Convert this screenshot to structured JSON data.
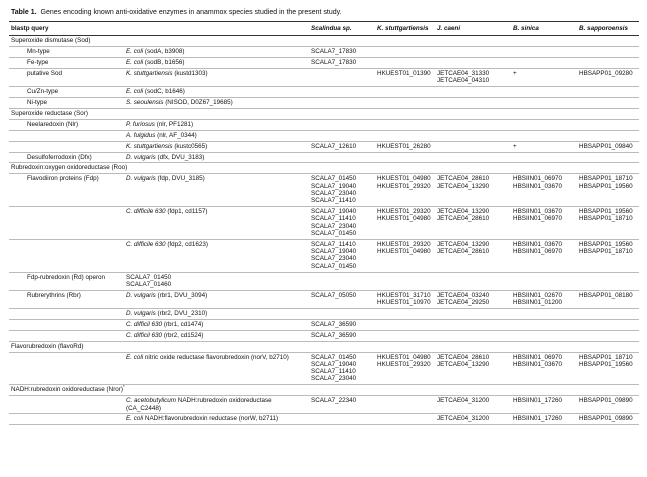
{
  "caption": {
    "label": "Table 1.",
    "text": "Genes encoding known anti-oxidative enzymes in anammox species studied in the present study."
  },
  "table": {
    "header": [
      "blastp query",
      "Scalindua sp.",
      "K. stuttgartiensis",
      "J. caeni",
      "B. sinica",
      "B. sapporoensis"
    ],
    "rows": [
      {
        "kind": "section",
        "label": "Superoxide dismutase (Sod)"
      },
      {
        "label": "Mn-type",
        "query": {
          "organism": "E. coli",
          "detail": "(sodA, b3908)"
        },
        "hits": [
          [
            "SCALA7_17830"
          ],
          [],
          [],
          [],
          []
        ]
      },
      {
        "label": "Fe-type",
        "query": {
          "organism": "E. coli",
          "detail": "(sodB, b1656)"
        },
        "hits": [
          [
            "SCALA7_17830"
          ],
          [],
          [],
          [],
          []
        ]
      },
      {
        "label": "putative Sod",
        "query": {
          "organism": "K. stuttgartiensis",
          "detail": "(kustd1303)"
        },
        "hits": [
          [],
          [
            "HKUEST01_01390"
          ],
          [
            "JETCAE04_31330",
            "JETCAE04_04310"
          ],
          [
            "+"
          ],
          [
            "HBSAPP01_09280"
          ]
        ]
      },
      {
        "label": "Cu/Zn-type",
        "query": {
          "organism": "E. coli",
          "detail": "(sodC, b1646)"
        },
        "hits": [
          [],
          [],
          [],
          [],
          []
        ]
      },
      {
        "label": "Ni-type",
        "query": {
          "organism": "S. seoulensis",
          "detail": "(NISOD, D0Z67_19685)"
        },
        "hits": [
          [],
          [],
          [],
          [],
          []
        ]
      },
      {
        "kind": "section",
        "label": "Superoxide reductase (Sor)"
      },
      {
        "label": "Neelaredoxin (Nlr)",
        "query": {
          "organism": "P. furiosus",
          "detail": "(nlr, PF1281)"
        },
        "hits": [
          [],
          [],
          [],
          [],
          []
        ]
      },
      {
        "label": null,
        "query": {
          "organism": "A. fulgidus",
          "detail": "(nlr, AF_0344)"
        },
        "hits": [
          [],
          [],
          [],
          [],
          []
        ]
      },
      {
        "label": null,
        "query": {
          "organism": "K. stuttgartiensis",
          "detail": "(kustc0565)"
        },
        "hits": [
          [
            "SCALA7_12610"
          ],
          [
            "HKUEST01_26280"
          ],
          [],
          [
            "+"
          ],
          [
            "HBSAPP01_09840"
          ]
        ]
      },
      {
        "label": "Desulfoferrodoxin (Dfx)",
        "query": {
          "organism": "D. vulgaris",
          "detail": "(dfx, DVU_3183)"
        },
        "hits": [
          [],
          [],
          [],
          [],
          []
        ]
      },
      {
        "kind": "section",
        "label": "Rubredoxin:oxygen oxidoreductase (Roo)"
      },
      {
        "label": "Flavodiiron proteins (Fdp)",
        "query": {
          "organism": "D. vulgaris",
          "detail": "(fdp, DVU_3185)"
        },
        "hits": [
          [
            "SCALA7_01450",
            "SCALA7_19040",
            "SCALA7_23040",
            "SCALA7_11410"
          ],
          [
            "HKUEST01_04980",
            "HKUEST01_29320"
          ],
          [
            "JETCAE04_28610",
            "JETCAE04_13290"
          ],
          [
            "HBSIIN01_06970",
            "HBSIIN01_03670"
          ],
          [
            "HBSAPP01_18710",
            "HBSAPP01_19560"
          ]
        ]
      },
      {
        "label": null,
        "query": {
          "organism": "C. difficile 630",
          "detail": "(fdp1, cd1157)"
        },
        "hits": [
          [
            "SCALA7_19040",
            "SCALA7_11410",
            "SCALA7_23040",
            "SCALA7_01450"
          ],
          [
            "HKUEST01_29320",
            "HKUEST01_04980"
          ],
          [
            "JETCAE04_13290",
            "JETCAE04_28610"
          ],
          [
            "HBSIIN01_03670",
            "HBSIIN01_06970"
          ],
          [
            "HBSAPP01_19560",
            "HBSAPP01_18710"
          ]
        ]
      },
      {
        "label": null,
        "query": {
          "organism": "C. difficile 630",
          "detail": "(fdp2, cd1623)"
        },
        "hits": [
          [
            "SCALA7_11410",
            "SCALA7_19040",
            "SCALA7_23040",
            "SCALA7_01450"
          ],
          [
            "HKUEST01_29320",
            "HKUEST01_04980"
          ],
          [
            "JETCAE04_13290",
            "JETCAE04_28610"
          ],
          [
            "HBSIIN01_03670",
            "HBSIIN01_06970"
          ],
          [
            "HBSAPP01_19560",
            "HBSAPP01_18710"
          ]
        ]
      },
      {
        "label": "Fdp-rubredoxin (Rd) operon",
        "query": {
          "lines": [
            "SCALA7_01450",
            "SCALA7_01460"
          ]
        },
        "hits": [
          [],
          [],
          [],
          [],
          []
        ]
      },
      {
        "label": "Rubrerythrins (Rbr)",
        "query": {
          "organism": "D. vulgaris",
          "detail": "(rbr1, DVU_3094)"
        },
        "hits": [
          [
            "SCALA7_05050"
          ],
          [
            "HKUEST01_31710",
            "HKUEST01_10970"
          ],
          [
            "JETCAE04_03240",
            "JETCAE04_29250"
          ],
          [
            "HBSIIN01_02670",
            "HBSIIN01_01200"
          ],
          [
            "HBSAPP01_08180"
          ]
        ]
      },
      {
        "label": null,
        "query": {
          "organism": "D. vulgaris",
          "detail": "(rbr2, DVU_2310)"
        },
        "hits": [
          [],
          [],
          [],
          [],
          []
        ]
      },
      {
        "label": null,
        "query": {
          "organism": "C. difficil 630",
          "detail": "(rbr1, cd1474)"
        },
        "hits": [
          [
            "SCALA7_36590"
          ],
          [],
          [],
          [],
          []
        ]
      },
      {
        "label": null,
        "query": {
          "organism": "C. difficil 630",
          "detail": "(rbr2, cd1524)"
        },
        "hits": [
          [
            "SCALA7_36590"
          ],
          [],
          [],
          [],
          []
        ]
      },
      {
        "kind": "section",
        "label": "Flavorubredoxin (flavoRd)"
      },
      {
        "label": null,
        "query": {
          "organism": "E. coli",
          "detail": "nitric oxide reductase flavorubredoxin (norV, b2710)"
        },
        "hits": [
          [
            "SCALA7_01450",
            "SCALA7_19040",
            "SCALA7_11410",
            "SCALA7_23040"
          ],
          [
            "HKUEST01_04980",
            "HKUEST01_29320"
          ],
          [
            "JETCAE04_28610",
            "JETCAE04_13290"
          ],
          [
            "HBSIIN01_06970",
            "HBSIIN01_03670"
          ],
          [
            "HBSAPP01_18710",
            "HBSAPP01_19560"
          ]
        ]
      },
      {
        "kind": "section",
        "label": "NADH:rubredoxin oxidoreductase (Nror)",
        "sup": "*"
      },
      {
        "label": null,
        "query": {
          "organism": "C. acetobutylicum",
          "detail": "NADH:rubredoxin oxidoreductase (CA_C2448)"
        },
        "hits": [
          [
            "SCALA7_22340"
          ],
          [],
          [
            "JETCAE04_31200"
          ],
          [
            "HBSIIN01_17260"
          ],
          [
            "HBSAPP01_09890"
          ]
        ]
      },
      {
        "label": null,
        "query": {
          "organism": "E. coli",
          "detail": "NADH:flavorubredoxin reductase (norW, b2711)"
        },
        "hits": [
          [],
          [],
          [
            "JETCAE04_31200"
          ],
          [
            "HBSIIN01_17260"
          ],
          [
            "HBSAPP01_09890"
          ]
        ]
      }
    ]
  }
}
